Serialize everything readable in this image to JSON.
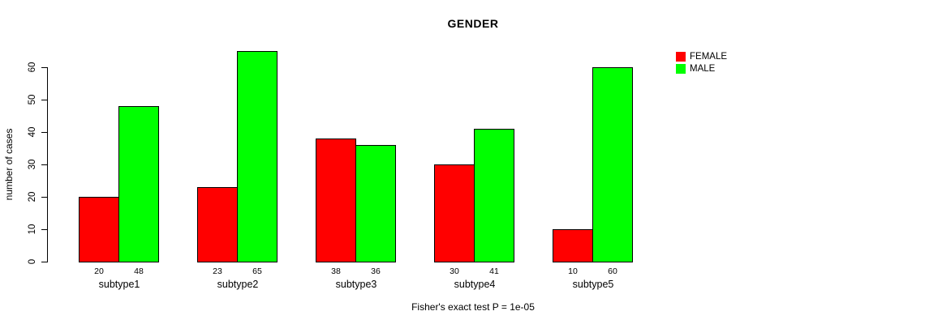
{
  "chart_data": {
    "type": "bar",
    "title": "GENDER",
    "categories": [
      "subtype1",
      "subtype2",
      "subtype3",
      "subtype4",
      "subtype5"
    ],
    "series": [
      {
        "name": "FEMALE",
        "color": "#ff0000",
        "values": [
          20,
          23,
          38,
          30,
          10
        ]
      },
      {
        "name": "MALE",
        "color": "#00ff00",
        "values": [
          48,
          65,
          36,
          41,
          60
        ]
      }
    ],
    "ylabel": "number of cases",
    "xlabel": "",
    "yticks": [
      0,
      10,
      20,
      30,
      40,
      50,
      60
    ],
    "ylim": [
      0,
      65
    ],
    "grid": false,
    "bar_value_labels_shown": true,
    "legend_position": "top-right",
    "legend_entries": [
      "FEMALE",
      "MALE"
    ],
    "caption": "Fisher's exact test P = 1e-05",
    "axis_color": "#000000",
    "bar_border_color": "#000000"
  }
}
